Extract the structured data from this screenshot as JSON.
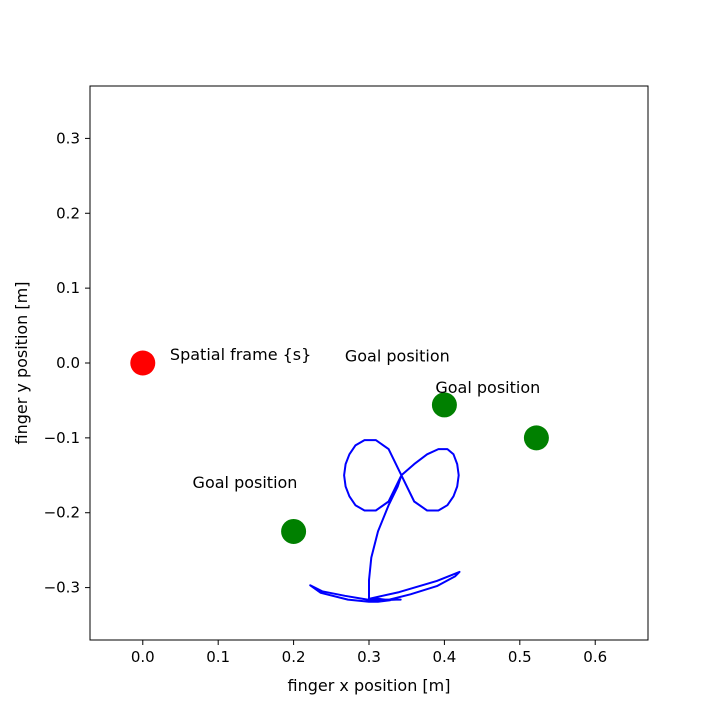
{
  "chart_data": {
    "type": "scatter",
    "title": "",
    "xlabel": "finger x position [m]",
    "ylabel": "finger y position [m]",
    "xlim": [
      -0.07,
      0.67
    ],
    "ylim": [
      -0.37,
      0.37
    ],
    "xticks": [
      0.0,
      0.1,
      0.2,
      0.3,
      0.4,
      0.5,
      0.6
    ],
    "yticks": [
      -0.3,
      -0.2,
      -0.1,
      0.0,
      0.1,
      0.2,
      0.3
    ],
    "xtick_labels": [
      "0.0",
      "0.1",
      "0.2",
      "0.3",
      "0.4",
      "0.5",
      "0.6"
    ],
    "ytick_labels": [
      "−0.3",
      "−0.2",
      "−0.1",
      "0.0",
      "0.1",
      "0.2",
      "0.3"
    ],
    "grid": false,
    "points": [
      {
        "x": 0.0,
        "y": 0.0,
        "color": "#ff0000",
        "label": "Spatial frame {s}",
        "label_x": 0.036,
        "label_y": 0.004
      },
      {
        "x": 0.4,
        "y": -0.056,
        "color": "#008000",
        "label": "Goal position",
        "label_x": 0.268,
        "label_y": 0.002
      },
      {
        "x": 0.522,
        "y": -0.1,
        "color": "#008000",
        "label": "Goal position",
        "label_x": 0.388,
        "label_y": -0.04
      },
      {
        "x": 0.2,
        "y": -0.225,
        "color": "#008000",
        "label": "Goal position",
        "label_x": 0.066,
        "label_y": -0.167
      }
    ],
    "trajectory": {
      "color": "#0000ff",
      "x": [
        0.3,
        0.318,
        0.336,
        0.342,
        0.298,
        0.268,
        0.238,
        0.222,
        0.236,
        0.272,
        0.3,
        0.312,
        0.328,
        0.312,
        0.3,
        0.34,
        0.39,
        0.42,
        0.414,
        0.39,
        0.355,
        0.327,
        0.304,
        0.3,
        0.3,
        0.3,
        0.303,
        0.312,
        0.326,
        0.338,
        0.343,
        0.36,
        0.377,
        0.392,
        0.404,
        0.412,
        0.417,
        0.419,
        0.417,
        0.412,
        0.404,
        0.392,
        0.377,
        0.36,
        0.343,
        0.326,
        0.309,
        0.294,
        0.282,
        0.274,
        0.269,
        0.267,
        0.269,
        0.274,
        0.282,
        0.294,
        0.309,
        0.326,
        0.343
      ],
      "y": [
        -0.318,
        -0.317,
        -0.316,
        -0.316,
        -0.316,
        -0.311,
        -0.305,
        -0.297,
        -0.307,
        -0.316,
        -0.319,
        -0.319,
        -0.317,
        -0.315,
        -0.315,
        -0.306,
        -0.291,
        -0.279,
        -0.285,
        -0.298,
        -0.309,
        -0.316,
        -0.318,
        -0.318,
        -0.31,
        -0.29,
        -0.26,
        -0.225,
        -0.19,
        -0.165,
        -0.15,
        -0.135,
        -0.122,
        -0.115,
        -0.115,
        -0.122,
        -0.135,
        -0.15,
        -0.165,
        -0.178,
        -0.19,
        -0.197,
        -0.197,
        -0.185,
        -0.15,
        -0.115,
        -0.103,
        -0.103,
        -0.11,
        -0.122,
        -0.135,
        -0.15,
        -0.165,
        -0.178,
        -0.19,
        -0.197,
        -0.197,
        -0.185,
        -0.15
      ]
    }
  }
}
